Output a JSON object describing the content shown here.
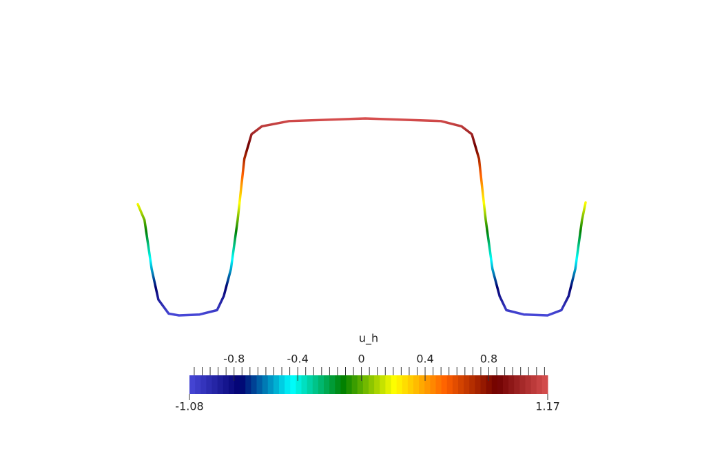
{
  "chart_data": {
    "type": "line",
    "title": "u_h",
    "x": [
      0,
      0.015,
      0.031,
      0.046,
      0.069,
      0.092,
      0.138,
      0.177,
      0.192,
      0.208,
      0.223,
      0.238,
      0.254,
      0.277,
      0.338,
      0.508,
      0.677,
      0.723,
      0.746,
      0.762,
      0.777,
      0.792,
      0.808,
      0.823,
      0.862,
      0.915,
      0.946,
      0.962,
      0.977,
      0.992,
      1
    ],
    "series": [
      {
        "name": "u_h",
        "values": [
          0.19,
          0.01,
          -0.55,
          -0.9,
          -1.06,
          -1.08,
          -1.07,
          -1.02,
          -0.86,
          -0.55,
          0.01,
          0.71,
          0.99,
          1.08,
          1.14,
          1.17,
          1.14,
          1.08,
          0.99,
          0.71,
          0.01,
          -0.55,
          -0.86,
          -1.02,
          -1.07,
          -1.08,
          -1.02,
          -0.86,
          -0.55,
          0.01,
          0.21
        ]
      }
    ],
    "xlim": [
      0,
      1
    ],
    "ylim": [
      -1.08,
      1.17
    ],
    "clim": [
      -1.08,
      1.17
    ],
    "colormap": [
      "#4848d8",
      "#000070",
      "#00ffff",
      "#008000",
      "#ffff00",
      "#ff6000",
      "#700000",
      "#d85050"
    ],
    "colormap_steps": 64,
    "cticks": [
      -0.8,
      -0.4,
      0,
      0.4,
      0.8
    ],
    "cminor_ticks": [
      -1.05,
      -1.0,
      -0.95,
      -0.9,
      -0.85,
      -0.75,
      -0.7,
      -0.65,
      -0.6,
      -0.55,
      -0.5,
      -0.45,
      -0.35,
      -0.3,
      -0.25,
      -0.2,
      -0.15,
      -0.1,
      -0.05,
      0.05,
      0.1,
      0.15,
      0.2,
      0.25,
      0.3,
      0.35,
      0.45,
      0.5,
      0.55,
      0.6,
      0.65,
      0.7,
      0.75,
      0.85,
      0.9,
      0.95,
      1.0,
      1.05,
      1.1,
      1.15
    ]
  }
}
